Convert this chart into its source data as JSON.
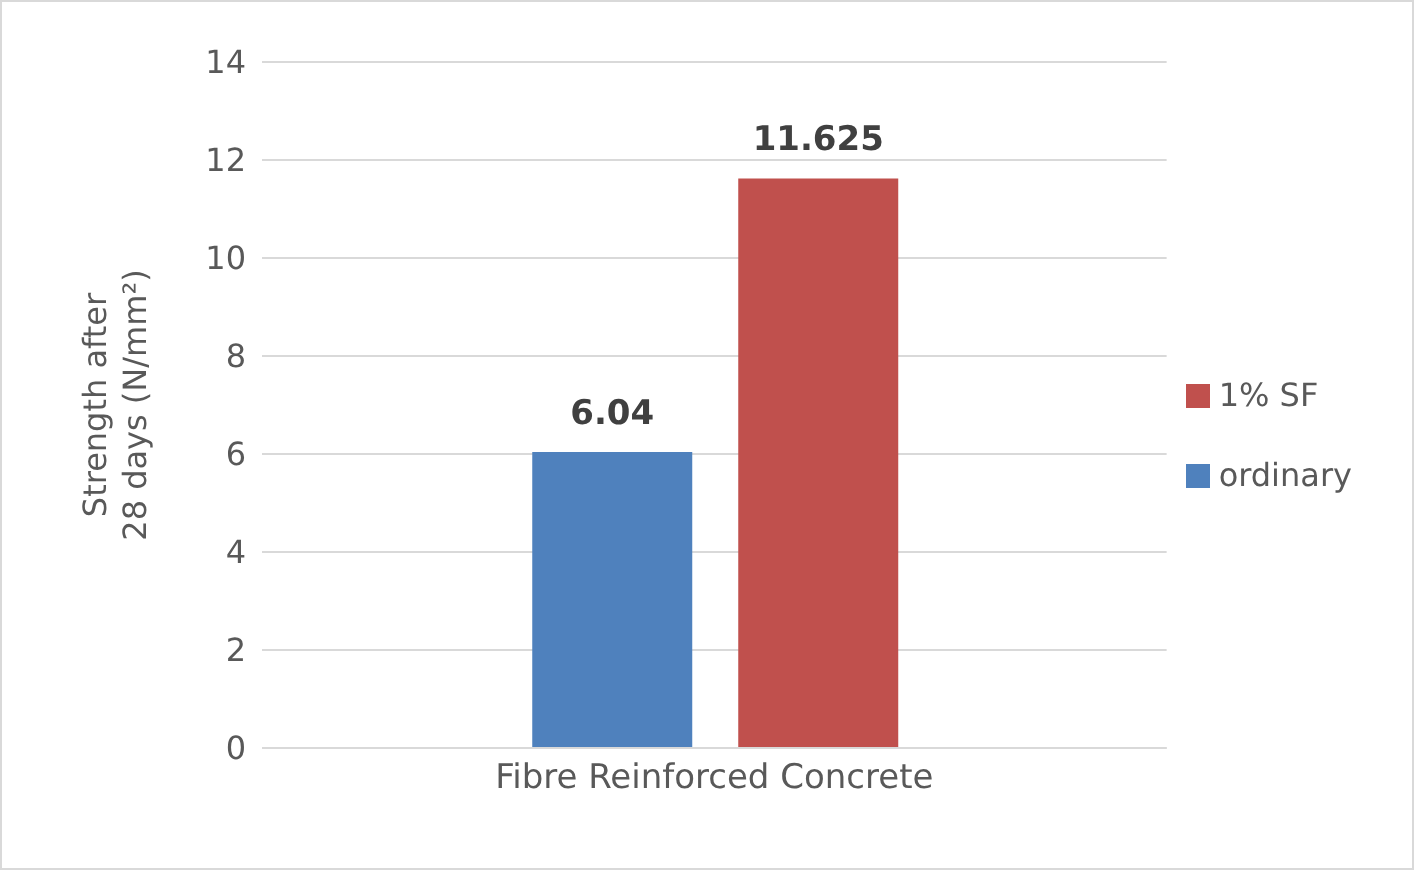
{
  "chart_data": {
    "type": "bar",
    "ylabel": "Strength after 28 days (N/mm²)",
    "categories": [
      "Fibre Reinforced Concrete"
    ],
    "series": [
      {
        "name": "ordinary",
        "color": "#4f81bd",
        "values": [
          6.04
        ]
      },
      {
        "name": "1% SF",
        "color": "#c0504d",
        "values": [
          11.625
        ]
      }
    ],
    "ylim": [
      0,
      14
    ],
    "yticks": [
      0,
      2,
      4,
      6,
      8,
      10,
      12,
      14
    ],
    "grid": "y",
    "legend": "right",
    "data_labels": true
  }
}
